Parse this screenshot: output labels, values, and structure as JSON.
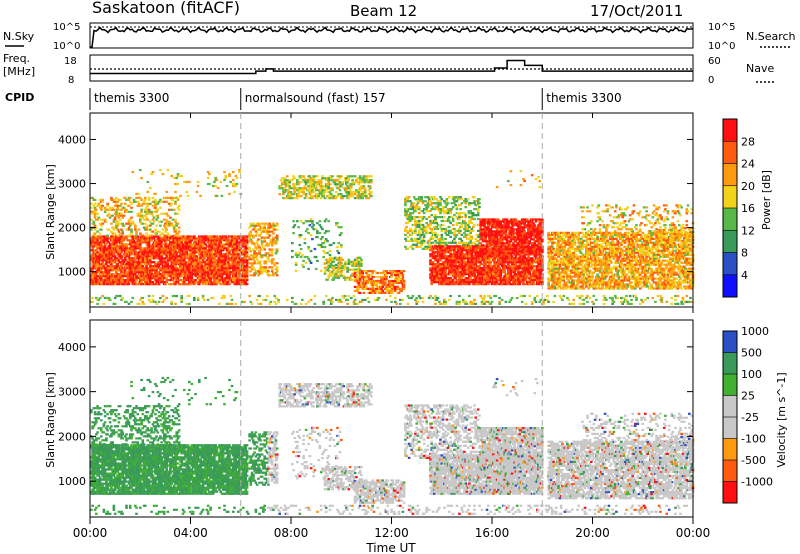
{
  "header": {
    "station": "Saskatoon (fitACF)",
    "beam": "Beam 12",
    "date": "17/Oct/2011"
  },
  "panels": {
    "nsky_label": "N.Sky",
    "nsky_ticks": [
      "10^5",
      "10^0"
    ],
    "nsearch_label": "N.Search",
    "nsearch_ticks": [
      "10^5",
      "10^0"
    ],
    "freq_label_1": "Freq.",
    "freq_label_2": "[MHz]",
    "freq_ticks": [
      "18",
      "8"
    ],
    "nave_label": "Nave",
    "nave_ticks": [
      "60",
      "0"
    ],
    "cpid_label": "CPID",
    "cpid_segments": [
      {
        "label": "themis 3300",
        "start": 0,
        "end": 6
      },
      {
        "label": "normalsound (fast) 157",
        "start": 6,
        "end": 18
      },
      {
        "label": "themis 3300",
        "start": 18,
        "end": 24
      }
    ]
  },
  "colors": {
    "power": [
      "#1010ff",
      "#2a50c8",
      "#3a9a5a",
      "#58b848",
      "#f2d21a",
      "#ff9a10",
      "#ff5a10",
      "#ff1010"
    ],
    "velocity": [
      "#ff1010",
      "#ff5a10",
      "#ff9a10",
      "#c8c8c8",
      "#c8c8c8",
      "#40b030",
      "#3a9a5a",
      "#2a50c8"
    ],
    "ground_scatter": "#c8c8c8"
  },
  "chart_data": [
    {
      "type": "heatmap",
      "panel": "power",
      "ylabel": "Slant Range [km]",
      "ylim": [
        200,
        4600
      ],
      "y_ticks": [
        1000,
        2000,
        3000,
        4000
      ],
      "xlim": [
        0,
        24
      ],
      "colorbar_label": "Power [dB]",
      "colorbar_ticks": [
        "4",
        "8",
        "12",
        "16",
        "20",
        "24",
        "28"
      ],
      "colorbar_range": [
        0,
        32
      ]
    },
    {
      "type": "heatmap",
      "panel": "velocity",
      "ylabel": "Slant Range [km]",
      "ylim": [
        200,
        4600
      ],
      "y_ticks": [
        1000,
        2000,
        3000,
        4000
      ],
      "xlim": [
        0,
        24
      ],
      "colorbar_label": "Velocity [m s^-1]",
      "colorbar_ticks": [
        "-1000",
        "-500",
        "-100",
        "-25",
        "25",
        "100",
        "500",
        "1000"
      ]
    }
  ],
  "x_axis": {
    "label": "Time UT",
    "ticks": [
      "00:00",
      "04:00",
      "08:00",
      "12:00",
      "16:00",
      "20:00",
      "00:00"
    ]
  }
}
